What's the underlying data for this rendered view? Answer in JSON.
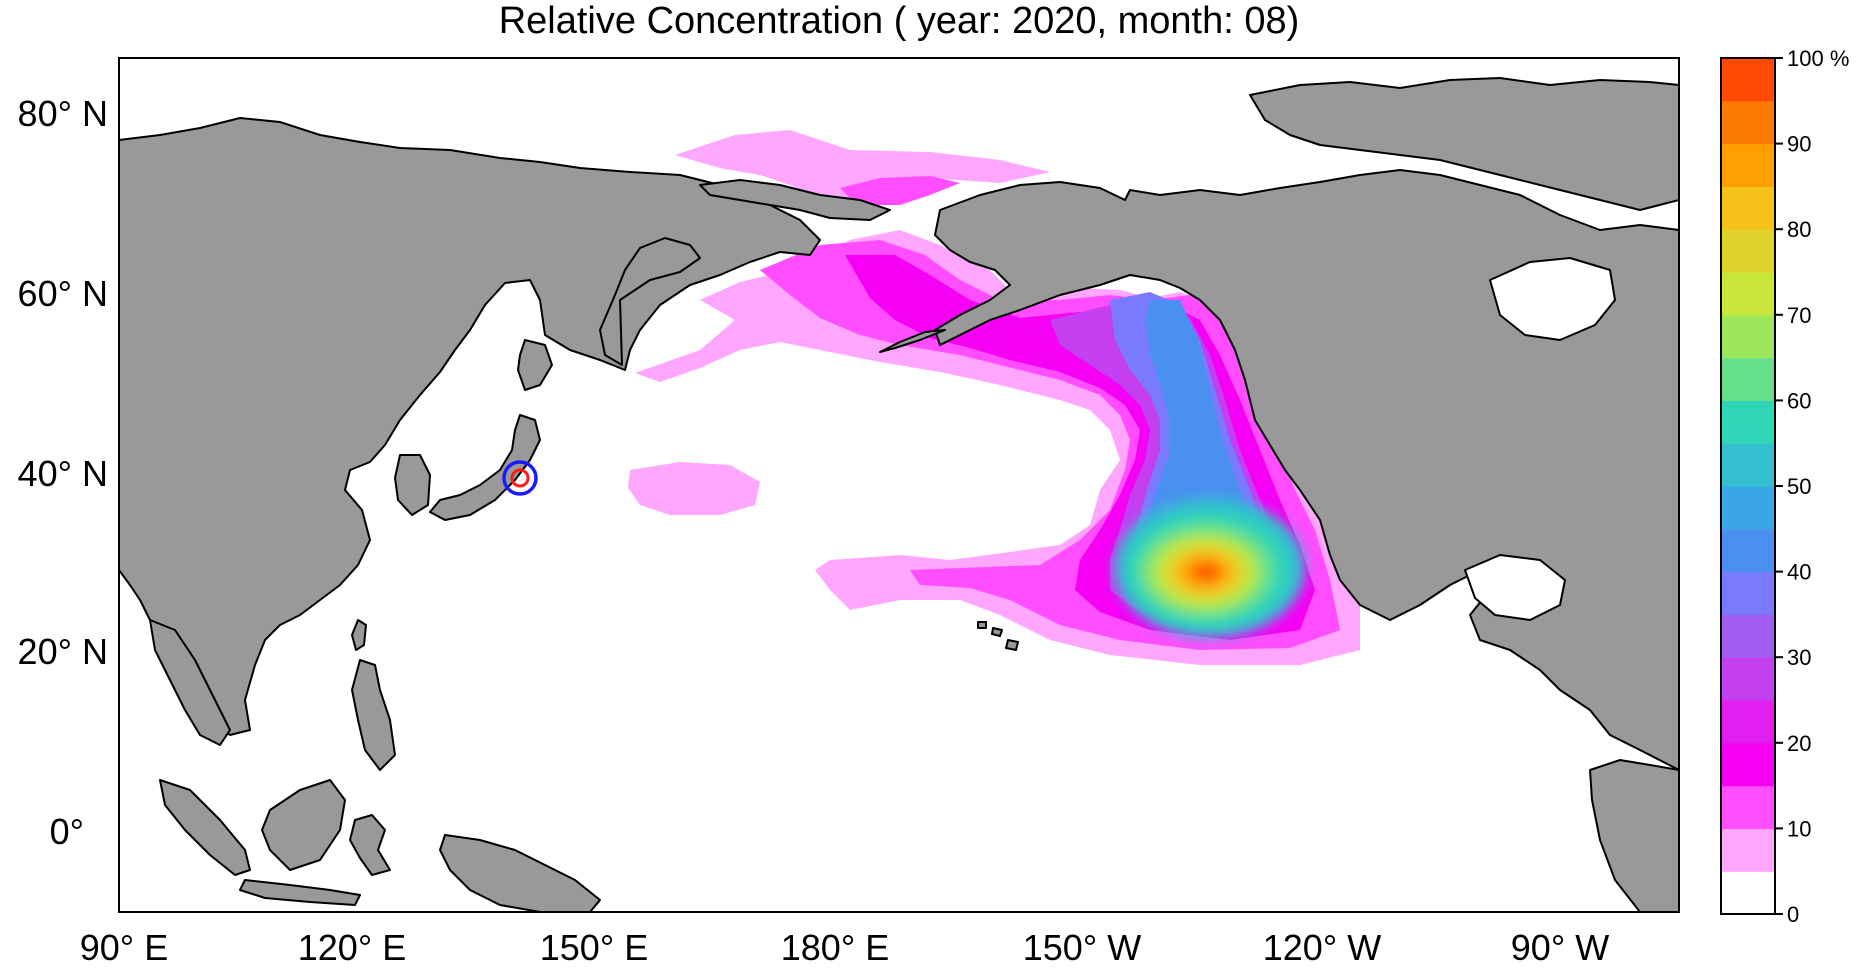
{
  "title": "Relative Concentration ( year: 2020, month: 08)",
  "map": {
    "lon_range": [
      90,
      287
    ],
    "lat_range": [
      -10,
      86
    ],
    "land_color": "#999999",
    "ocean_color": "#ffffff",
    "release_site": {
      "lon": 141,
      "lat": 37.5,
      "outer_color": "#1a1aff",
      "inner_color": "#ff1a1a"
    },
    "lat_ticks": [
      {
        "lat": 80,
        "label": "80° N"
      },
      {
        "lat": 60,
        "label": "60° N"
      },
      {
        "lat": 40,
        "label": "40° N"
      },
      {
        "lat": 20,
        "label": "20° N"
      },
      {
        "lat": 0,
        "label": "0°"
      }
    ],
    "lon_ticks": [
      {
        "lon": 90,
        "label": "90° E"
      },
      {
        "lon": 120,
        "label": "120° E"
      },
      {
        "lon": 150,
        "label": "150° E"
      },
      {
        "lon": 180,
        "label": "180° E"
      },
      {
        "lon": 210,
        "label": "150° W"
      },
      {
        "lon": 240,
        "label": "120° W"
      },
      {
        "lon": 270,
        "label": "90° W"
      }
    ]
  },
  "colorbar": {
    "unit": "%",
    "colors": [
      "#ffffff",
      "#ffa6ff",
      "#ff4dff",
      "#f500f5",
      "#e11ff0",
      "#c33ff0",
      "#a15cf0",
      "#7a7aff",
      "#4a90f0",
      "#3aa6e6",
      "#33bfcf",
      "#2fd6b5",
      "#66e08a",
      "#9ce65a",
      "#c8e63a",
      "#e0d22a",
      "#f5c21a",
      "#ff9f00",
      "#ff7a00",
      "#ff4a00"
    ],
    "labels": [
      {
        "value": 0,
        "text": "0"
      },
      {
        "value": 10,
        "text": "10"
      },
      {
        "value": 20,
        "text": "20"
      },
      {
        "value": 30,
        "text": "30"
      },
      {
        "value": 40,
        "text": "40"
      },
      {
        "value": 50,
        "text": "50"
      },
      {
        "value": 60,
        "text": "60"
      },
      {
        "value": 70,
        "text": "70"
      },
      {
        "value": 80,
        "text": "80"
      },
      {
        "value": 90,
        "text": "90"
      },
      {
        "value": 100,
        "text": "100 %"
      }
    ]
  }
}
